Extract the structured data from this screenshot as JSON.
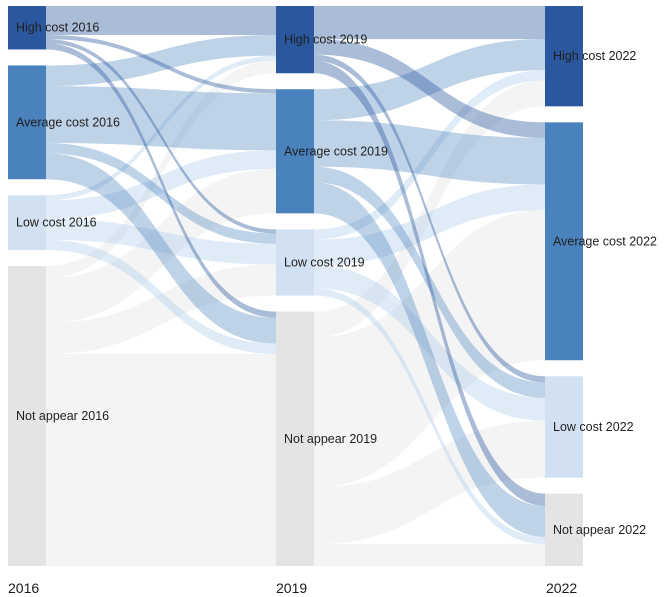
{
  "colors": {
    "high": "#2a579e",
    "average": "#4a82be",
    "low": "#d2e1f1",
    "none": "#e4e4e4"
  },
  "years": [
    {
      "key": "y2016",
      "label": "2016"
    },
    {
      "key": "y2019",
      "label": "2019"
    },
    {
      "key": "y2022",
      "label": "2022"
    }
  ],
  "chart_data": {
    "type": "sankey",
    "title": "",
    "unit": "cases",
    "stages": [
      "2016",
      "2019",
      "2022"
    ],
    "nodes": [
      {
        "id": "h16",
        "label": "High cost 2016",
        "stage": 0,
        "cat": "high"
      },
      {
        "id": "a16",
        "label": "Average cost 2016",
        "stage": 0,
        "cat": "average"
      },
      {
        "id": "l16",
        "label": "Low cost 2016",
        "stage": 0,
        "cat": "low"
      },
      {
        "id": "n16",
        "label": "Not appear 2016",
        "stage": 0,
        "cat": "none"
      },
      {
        "id": "h19",
        "label": "High cost 2019",
        "stage": 1,
        "cat": "high"
      },
      {
        "id": "a19",
        "label": "Average cost 2019",
        "stage": 1,
        "cat": "average"
      },
      {
        "id": "l19",
        "label": "Low cost 2019",
        "stage": 1,
        "cat": "low"
      },
      {
        "id": "n19",
        "label": "Not appear 2019",
        "stage": 1,
        "cat": "none"
      },
      {
        "id": "h22",
        "label": "High cost 2022",
        "stage": 2,
        "cat": "high"
      },
      {
        "id": "a22",
        "label": "Average cost 2022",
        "stage": 2,
        "cat": "average"
      },
      {
        "id": "l22",
        "label": "Low cost 2022",
        "stage": 2,
        "cat": "low"
      },
      {
        "id": "n22",
        "label": "Not appear 2022",
        "stage": 2,
        "cat": "none"
      }
    ],
    "links": [
      {
        "source": "h16",
        "target": "h19",
        "value": 28
      },
      {
        "source": "h16",
        "target": "a19",
        "value": 4
      },
      {
        "source": "h16",
        "target": "l19",
        "value": 4
      },
      {
        "source": "h16",
        "target": "n19",
        "value": 6
      },
      {
        "source": "a16",
        "target": "h19",
        "value": 20
      },
      {
        "source": "a16",
        "target": "a19",
        "value": 55
      },
      {
        "source": "a16",
        "target": "l19",
        "value": 10
      },
      {
        "source": "a16",
        "target": "n19",
        "value": 25
      },
      {
        "source": "l16",
        "target": "h19",
        "value": 5
      },
      {
        "source": "l16",
        "target": "a19",
        "value": 18
      },
      {
        "source": "l16",
        "target": "l19",
        "value": 20
      },
      {
        "source": "l16",
        "target": "n19",
        "value": 10
      },
      {
        "source": "n16",
        "target": "h19",
        "value": 12
      },
      {
        "source": "n16",
        "target": "a19",
        "value": 43
      },
      {
        "source": "n16",
        "target": "l19",
        "value": 30
      },
      {
        "source": "n16",
        "target": "n19",
        "value": 205
      },
      {
        "source": "h19",
        "target": "h22",
        "value": 32
      },
      {
        "source": "h19",
        "target": "a22",
        "value": 15
      },
      {
        "source": "h19",
        "target": "l22",
        "value": 6
      },
      {
        "source": "h19",
        "target": "n22",
        "value": 12
      },
      {
        "source": "a19",
        "target": "h22",
        "value": 30
      },
      {
        "source": "a19",
        "target": "a22",
        "value": 45
      },
      {
        "source": "a19",
        "target": "l22",
        "value": 15
      },
      {
        "source": "a19",
        "target": "n22",
        "value": 30
      },
      {
        "source": "l19",
        "target": "h22",
        "value": 10
      },
      {
        "source": "l19",
        "target": "a22",
        "value": 25
      },
      {
        "source": "l19",
        "target": "l22",
        "value": 22
      },
      {
        "source": "l19",
        "target": "n22",
        "value": 7
      },
      {
        "source": "n19",
        "target": "h22",
        "value": 25
      },
      {
        "source": "n19",
        "target": "a22",
        "value": 145
      },
      {
        "source": "n19",
        "target": "l22",
        "value": 55
      },
      {
        "source": "n19",
        "target": "n22",
        "value": 21
      }
    ]
  }
}
